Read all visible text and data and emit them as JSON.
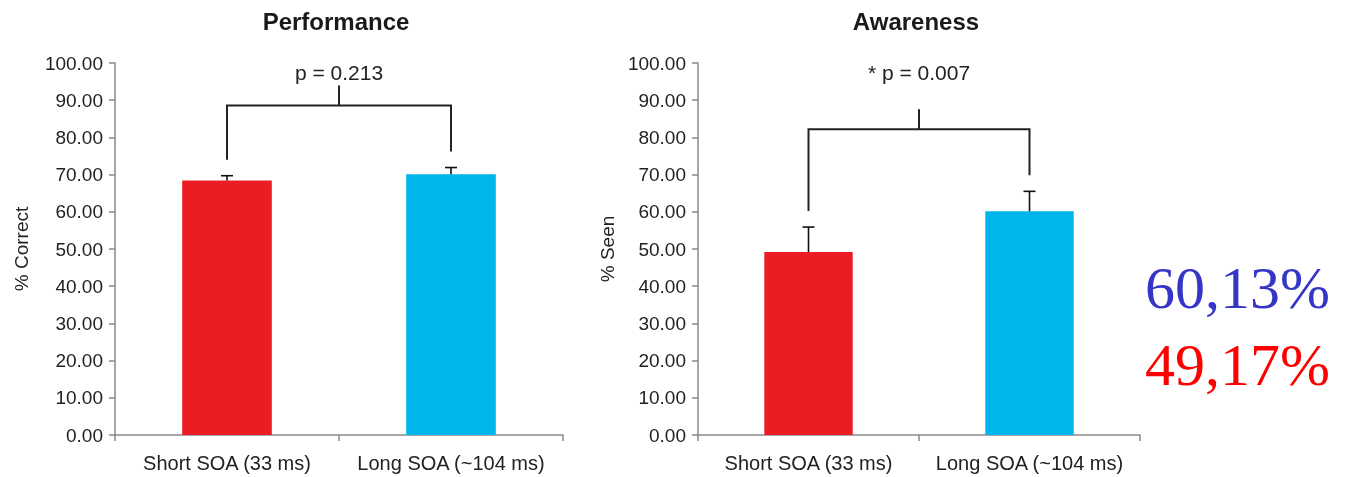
{
  "chart_data": [
    {
      "type": "bar",
      "title": "Performance",
      "ylabel": "% Correct",
      "categories": [
        "Short SOA (33 ms)",
        "Long SOA (~104 ms)"
      ],
      "values": [
        68.4,
        70.1
      ],
      "colors": [
        "#ec1c24",
        "#00b4ec"
      ],
      "errors": [
        [
          68.4,
          69.7
        ],
        [
          70.1,
          71.9
        ]
      ],
      "ylim": [
        0,
        100
      ],
      "yticks": [
        {
          "value": 0,
          "label": "0.00"
        },
        {
          "value": 10,
          "label": "10.00"
        },
        {
          "value": 20,
          "label": "20.00"
        },
        {
          "value": 30,
          "label": "30.00"
        },
        {
          "value": 40,
          "label": "40.00"
        },
        {
          "value": 50,
          "label": "50.00"
        },
        {
          "value": 60,
          "label": "60.00"
        },
        {
          "value": 70,
          "label": "70.00"
        },
        {
          "value": 80,
          "label": "80.00"
        },
        {
          "value": 90,
          "label": "90.00"
        },
        {
          "value": 100,
          "label": "100.00"
        }
      ],
      "grid": false,
      "annotations": [
        "p = 0.213"
      ]
    },
    {
      "type": "bar",
      "title": "Awareness",
      "ylabel": "% Seen",
      "categories": [
        "Short SOA (33 ms)",
        "Long SOA (~104 ms)"
      ],
      "values": [
        49.17,
        60.13
      ],
      "colors": [
        "#ec1c24",
        "#00b4ec"
      ],
      "errors": [
        [
          49.17,
          55.9
        ],
        [
          60.13,
          65.5
        ]
      ],
      "ylim": [
        0,
        100
      ],
      "yticks": [
        {
          "value": 0,
          "label": "0.00"
        },
        {
          "value": 10,
          "label": "10.00"
        },
        {
          "value": 20,
          "label": "20.00"
        },
        {
          "value": 30,
          "label": "30.00"
        },
        {
          "value": 40,
          "label": "40.00"
        },
        {
          "value": 50,
          "label": "50.00"
        },
        {
          "value": 60,
          "label": "60.00"
        },
        {
          "value": 70,
          "label": "70.00"
        },
        {
          "value": 80,
          "label": "80.00"
        },
        {
          "value": 90,
          "label": "90.00"
        },
        {
          "value": 100,
          "label": "100.00"
        }
      ],
      "grid": false,
      "annotations": [
        "* p = 0.007",
        "60,13%",
        "49,17%"
      ]
    }
  ]
}
